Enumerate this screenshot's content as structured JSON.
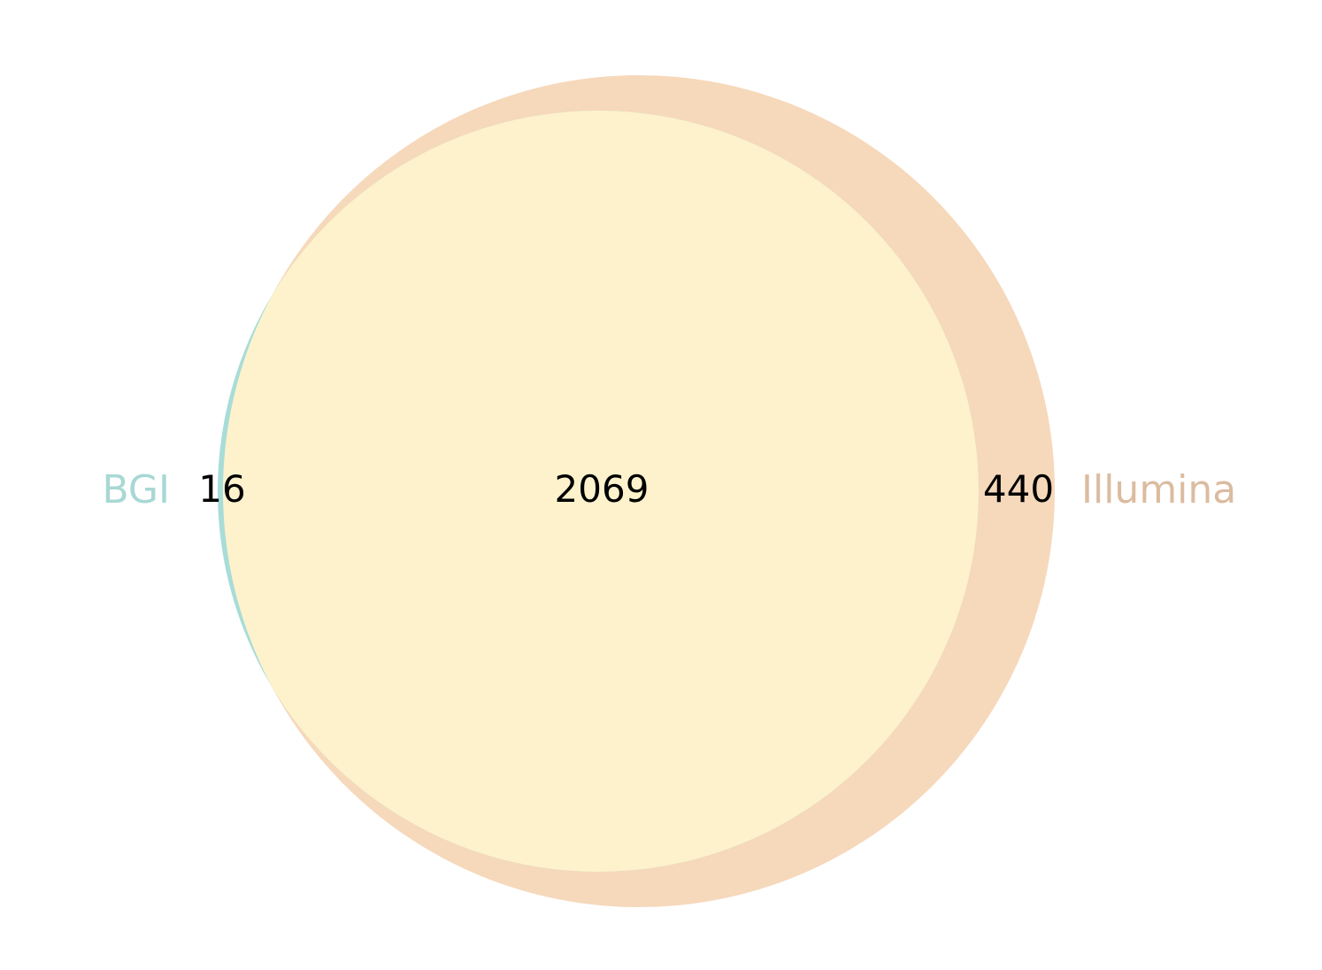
{
  "venn": {
    "type": "venn2",
    "sets": [
      {
        "id": "bgi",
        "label": "BGI",
        "only_count": "16",
        "circle_color": "#a8dcd8",
        "label_color": "#a8d8d4"
      },
      {
        "id": "illumina",
        "label": "Illumina",
        "only_count": "440",
        "circle_color": "#f6d8bb",
        "label_color": "#dbbca0"
      }
    ],
    "intersection": {
      "count": "2069",
      "color": "#fdf2cc"
    }
  }
}
